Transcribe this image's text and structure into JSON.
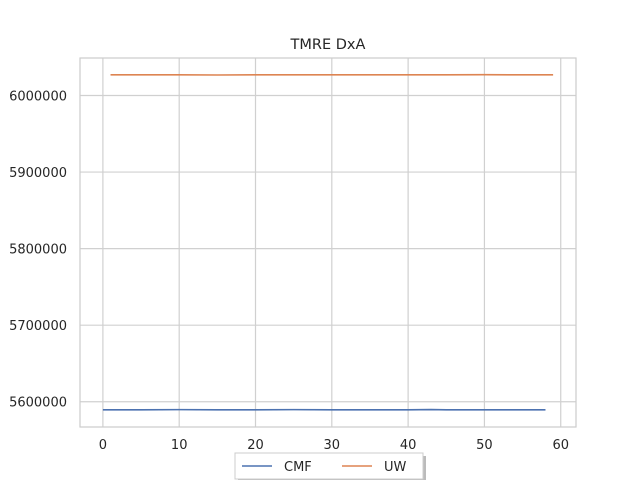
{
  "chart_data": {
    "type": "line",
    "title": "TMRE DxA",
    "xlabel": "",
    "ylabel": "",
    "xlim": [
      -3,
      62
    ],
    "ylim": [
      5567000,
      6049000
    ],
    "xticks": [
      0,
      10,
      20,
      30,
      40,
      50,
      60
    ],
    "yticks": [
      5600000,
      5700000,
      5800000,
      5900000,
      6000000
    ],
    "grid": true,
    "legend": "bottom-center",
    "series": [
      {
        "name": "CMF",
        "color": "#4c72b0",
        "x": [
          0,
          5,
          10,
          15,
          20,
          25,
          30,
          35,
          40,
          43,
          45,
          50,
          55,
          58
        ],
        "y": [
          5589500,
          5589500,
          5589700,
          5589500,
          5589500,
          5589700,
          5589500,
          5589500,
          5589500,
          5589800,
          5589500,
          5589500,
          5589500,
          5589500
        ]
      },
      {
        "name": "UW",
        "color": "#dd8452",
        "x": [
          1,
          5,
          10,
          15,
          20,
          25,
          30,
          35,
          40,
          45,
          50,
          55,
          59
        ],
        "y": [
          6027000,
          6027000,
          6027000,
          6026800,
          6027000,
          6027000,
          6027000,
          6027000,
          6027000,
          6027000,
          6027200,
          6027000,
          6027000
        ]
      }
    ]
  }
}
